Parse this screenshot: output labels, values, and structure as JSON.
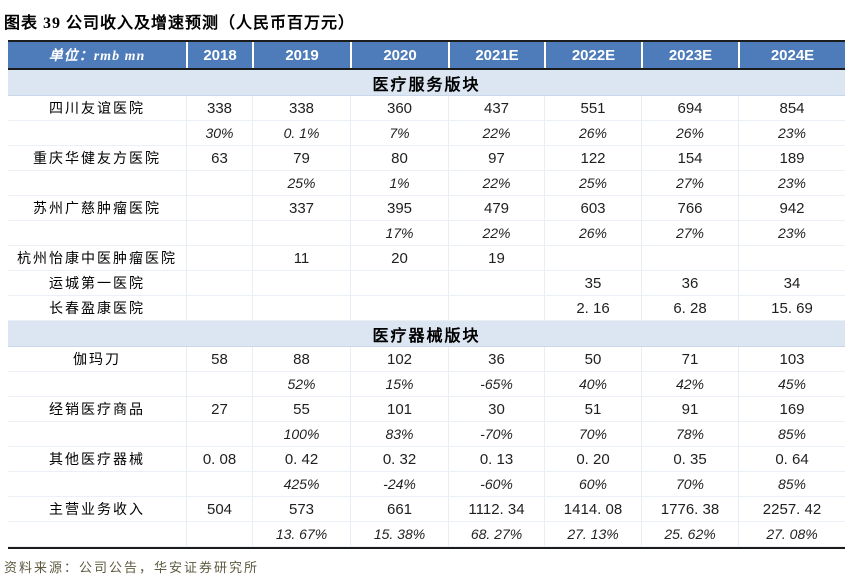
{
  "title": "图表 39 公司收入及增速预测（人民币百万元）",
  "source": "资料来源：公司公告，华安证券研究所",
  "colors": {
    "header_bg": "#4e7cba",
    "header_text": "#ffffff",
    "band_bg": "#dce6f2",
    "border_dark": "#1c1c1c",
    "source_text": "#5e5a40"
  },
  "table": {
    "unit_label": "单位：rmb mn",
    "years": [
      "2018",
      "2019",
      "2020",
      "2021E",
      "2022E",
      "2023E",
      "2024E"
    ],
    "sections": [
      {
        "name": "医疗服务版块",
        "rows": [
          {
            "label": "四川友谊医院",
            "type": "value",
            "values": [
              "338",
              "338",
              "360",
              "437",
              "551",
              "694",
              "854"
            ]
          },
          {
            "label": "",
            "type": "growth",
            "values": [
              "30%",
              "0. 1%",
              "7%",
              "22%",
              "26%",
              "26%",
              "23%"
            ]
          },
          {
            "label": "重庆华健友方医院",
            "type": "value",
            "values": [
              "63",
              "79",
              "80",
              "97",
              "122",
              "154",
              "189"
            ]
          },
          {
            "label": "",
            "type": "growth",
            "values": [
              "",
              "25%",
              "1%",
              "22%",
              "25%",
              "27%",
              "23%"
            ]
          },
          {
            "label": "苏州广慈肿瘤医院",
            "type": "value",
            "values": [
              "",
              "337",
              "395",
              "479",
              "603",
              "766",
              "942"
            ]
          },
          {
            "label": "",
            "type": "growth",
            "values": [
              "",
              "",
              "17%",
              "22%",
              "26%",
              "27%",
              "23%"
            ]
          },
          {
            "label": "杭州怡康中医肿瘤医院",
            "type": "value",
            "values": [
              "",
              "11",
              "20",
              "19",
              "",
              "",
              ""
            ]
          },
          {
            "label": "运城第一医院",
            "type": "value",
            "values": [
              "",
              "",
              "",
              "",
              "35",
              "36",
              "34"
            ]
          },
          {
            "label": "长春盈康医院",
            "type": "value",
            "values": [
              "",
              "",
              "",
              "",
              "2. 16",
              "6. 28",
              "15. 69"
            ]
          }
        ]
      },
      {
        "name": "医疗器械版块",
        "rows": [
          {
            "label": "伽玛刀",
            "type": "value",
            "values": [
              "58",
              "88",
              "102",
              "36",
              "50",
              "71",
              "103"
            ]
          },
          {
            "label": "",
            "type": "growth",
            "values": [
              "",
              "52%",
              "15%",
              "-65%",
              "40%",
              "42%",
              "45%"
            ]
          },
          {
            "label": "经销医疗商品",
            "type": "value",
            "values": [
              "27",
              "55",
              "101",
              "30",
              "51",
              "91",
              "169"
            ]
          },
          {
            "label": "",
            "type": "growth",
            "values": [
              "",
              "100%",
              "83%",
              "-70%",
              "70%",
              "78%",
              "85%"
            ]
          },
          {
            "label": "其他医疗器械",
            "type": "value",
            "values": [
              "0. 08",
              "0. 42",
              "0. 32",
              "0. 13",
              "0. 20",
              "0. 35",
              "0. 64"
            ]
          },
          {
            "label": "",
            "type": "growth",
            "values": [
              "",
              "425%",
              "-24%",
              "-60%",
              "60%",
              "70%",
              "85%"
            ]
          },
          {
            "label": "主营业务收入",
            "type": "value",
            "values": [
              "504",
              "573",
              "661",
              "1112. 34",
              "1414. 08",
              "1776. 38",
              "2257. 42"
            ]
          },
          {
            "label": "",
            "type": "growth",
            "values": [
              "",
              "13. 67%",
              "15. 38%",
              "68. 27%",
              "27. 13%",
              "25. 62%",
              "27. 08%"
            ]
          }
        ]
      }
    ]
  }
}
